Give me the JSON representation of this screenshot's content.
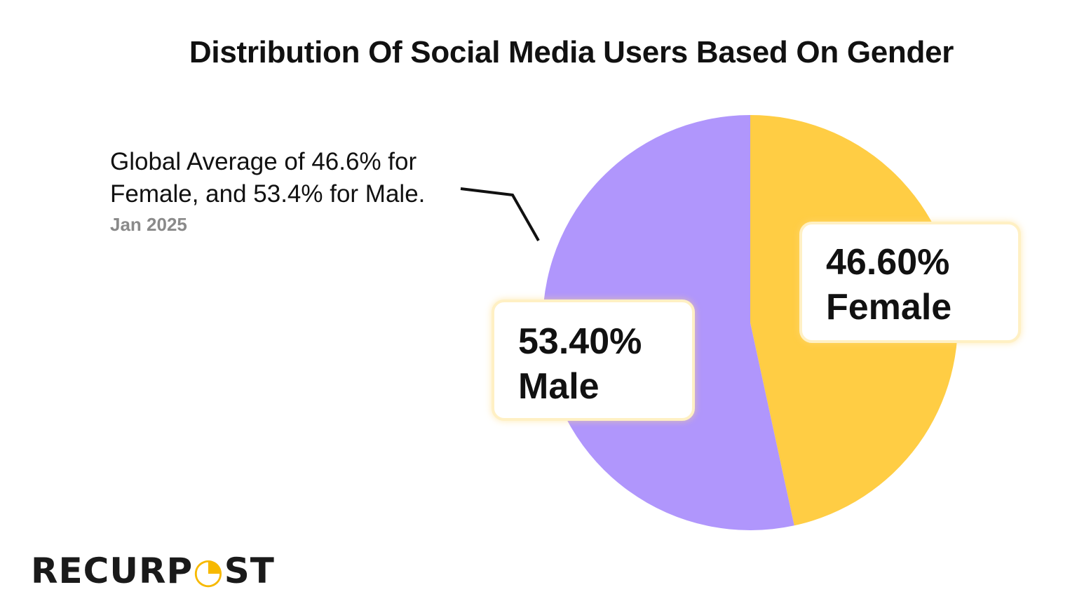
{
  "chart_data": {
    "type": "pie",
    "title": "Distribution Of Social Media Users Based On Gender",
    "slices": [
      {
        "name": "Female",
        "value": 46.6,
        "label": "46.60%",
        "color": "#FFCD44"
      },
      {
        "name": "Male",
        "value": 53.4,
        "label": "53.40%",
        "color": "#B096FC"
      }
    ],
    "start_angle": "top, clockwise",
    "annotation": {
      "text": "Global Average of 46.6% for Female, and 53.4% for Male.",
      "date": "Jan 2025"
    }
  },
  "logo": {
    "text": "RECURPOST",
    "accent_color": "#F7B900"
  }
}
